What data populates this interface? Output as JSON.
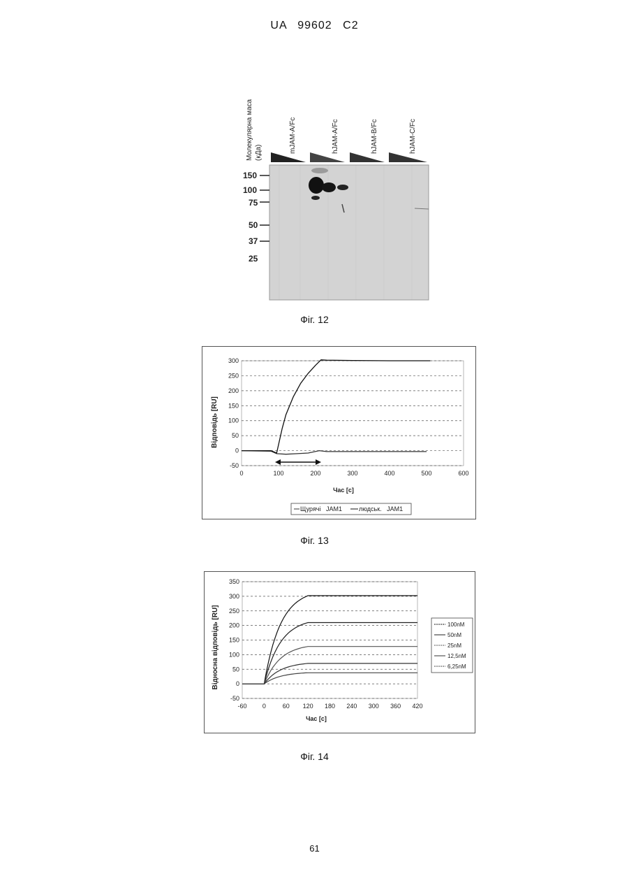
{
  "header": "UA   99602   C2",
  "page_number": "61",
  "figure12": {
    "caption": "Фіг. 12",
    "ylabel_line1": "Молекулярна маса",
    "ylabel_line2": "(кДа)",
    "lanes": [
      "mJAM-A/Fc",
      "hJAM-A/Fc",
      "hJAM-B/Fc",
      "hJAM-C/Fc"
    ],
    "markers": [
      "150",
      "100",
      "75",
      "50",
      "37",
      "25"
    ]
  },
  "figure13": {
    "caption": "Фіг. 13",
    "chart_data": {
      "type": "line",
      "xlabel": "Час [с]",
      "ylabel": "Відповідь [RU]",
      "xlim": [
        0,
        600
      ],
      "ylim": [
        -50,
        300
      ],
      "xticks": [
        "0",
        "100",
        "200",
        "300",
        "400",
        "500",
        "600"
      ],
      "yticks": [
        "-50",
        "0",
        "50",
        "100",
        "150",
        "200",
        "250",
        "300"
      ],
      "legend": [
        "Щурячі   JAM1",
        "людськ.   JAM1"
      ],
      "series": [
        {
          "name": "Щурячі   JAM1",
          "x": [
            0,
            80,
            95,
            120,
            150,
            180,
            210,
            230,
            500
          ],
          "y": [
            0,
            -2,
            -10,
            -12,
            -10,
            -8,
            0,
            -3,
            -3
          ]
        },
        {
          "name": "людськ.   JAM1",
          "x": [
            0,
            80,
            95,
            100,
            110,
            120,
            140,
            160,
            180,
            200,
            215,
            230,
            300,
            400,
            510
          ],
          "y": [
            0,
            0,
            -8,
            20,
            75,
            120,
            180,
            225,
            258,
            285,
            303,
            302,
            301,
            300,
            300
          ]
        }
      ],
      "annotation": "double arrow 100–210 s"
    }
  },
  "figure14": {
    "caption": "Фіг. 14",
    "chart_data": {
      "type": "line",
      "xlabel": "Час [с]",
      "ylabel": "Відносна відповідь [RU]",
      "xlim": [
        -60,
        420
      ],
      "ylim": [
        -50,
        350
      ],
      "xticks": [
        "-60",
        "0",
        "60",
        "120",
        "180",
        "240",
        "300",
        "360",
        "420"
      ],
      "yticks": [
        "-50",
        "0",
        "50",
        "100",
        "150",
        "200",
        "250",
        "300",
        "350"
      ],
      "legend": [
        "100nM",
        "50nM",
        "25nM",
        "12,5nM",
        "6,25nM"
      ],
      "series": [
        {
          "name": "100nM",
          "plateau": 302
        },
        {
          "name": "50nM",
          "plateau": 210
        },
        {
          "name": "25nM",
          "plateau": 128
        },
        {
          "name": "12,5nM",
          "plateau": 70
        },
        {
          "name": "6,25nM",
          "plateau": 38
        }
      ]
    }
  }
}
